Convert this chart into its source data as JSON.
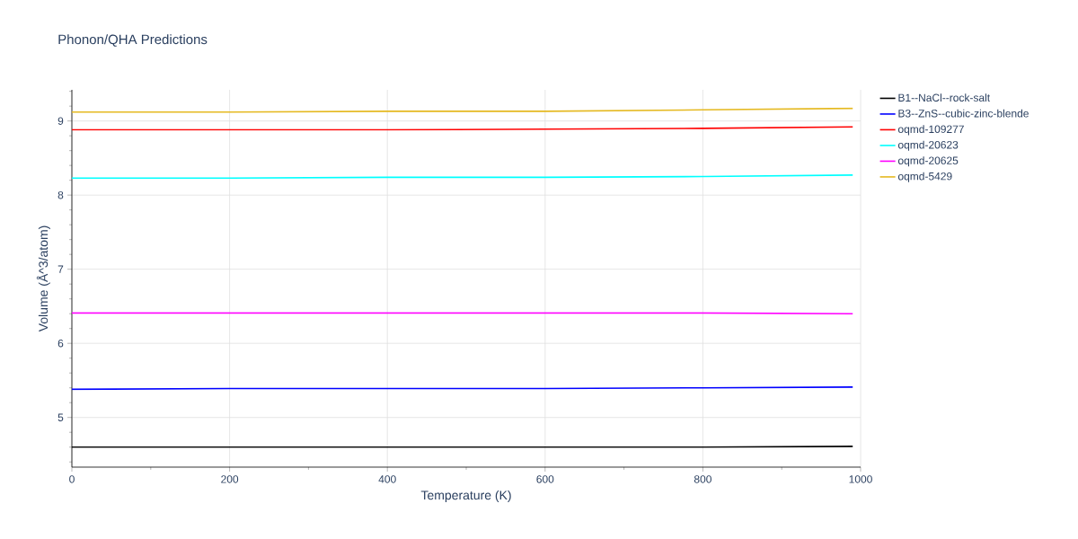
{
  "chart_data": {
    "type": "line",
    "title": "Phonon/QHA Predictions",
    "xlabel": "Temperature (K)",
    "ylabel": "Volume (Å^3/atom)",
    "x": [
      0,
      200,
      400,
      600,
      800,
      990
    ],
    "series": [
      {
        "name": "B1--NaCl--rock-salt",
        "color": "#000000",
        "values": [
          4.6,
          4.6,
          4.6,
          4.6,
          4.6,
          4.61
        ]
      },
      {
        "name": "B3--ZnS--cubic-zinc-blende",
        "color": "#0000ff",
        "values": [
          5.38,
          5.39,
          5.39,
          5.39,
          5.4,
          5.41
        ]
      },
      {
        "name": "oqmd-109277",
        "color": "#ff0000",
        "values": [
          8.88,
          8.88,
          8.88,
          8.89,
          8.9,
          8.92
        ]
      },
      {
        "name": "oqmd-20623",
        "color": "#00ffff",
        "values": [
          8.23,
          8.23,
          8.24,
          8.24,
          8.25,
          8.27
        ]
      },
      {
        "name": "oqmd-20625",
        "color": "#ff00ff",
        "values": [
          6.41,
          6.41,
          6.41,
          6.41,
          6.41,
          6.4
        ]
      },
      {
        "name": "oqmd-5429",
        "color": "#e5b921",
        "values": [
          9.12,
          9.12,
          9.13,
          9.13,
          9.15,
          9.17
        ]
      }
    ],
    "xlim": [
      0,
      1000
    ],
    "ylim": [
      4.33,
      9.42
    ],
    "xticks": [
      0,
      {
        "value": 100,
        "label": null
      },
      200,
      {
        "value": 300,
        "label": null
      },
      400,
      {
        "value": 500,
        "label": null
      },
      600,
      {
        "value": 700,
        "label": null
      },
      800,
      {
        "value": 900,
        "label": null
      },
      1000
    ],
    "yticks": [
      {
        "value": 4.4,
        "label": null
      },
      {
        "value": 4.6,
        "label": null
      },
      {
        "value": 4.8,
        "label": null
      },
      5,
      {
        "value": 5.2,
        "label": null
      },
      {
        "value": 5.4,
        "label": null
      },
      {
        "value": 5.6,
        "label": null
      },
      {
        "value": 5.8,
        "label": null
      },
      6,
      {
        "value": 6.2,
        "label": null
      },
      {
        "value": 6.4,
        "label": null
      },
      {
        "value": 6.6,
        "label": null
      },
      {
        "value": 6.8,
        "label": null
      },
      7,
      {
        "value": 7.2,
        "label": null
      },
      {
        "value": 7.4,
        "label": null
      },
      {
        "value": 7.6,
        "label": null
      },
      {
        "value": 7.8,
        "label": null
      },
      8,
      {
        "value": 8.2,
        "label": null
      },
      {
        "value": 8.4,
        "label": null
      },
      {
        "value": 8.6,
        "label": null
      },
      {
        "value": 8.8,
        "label": null
      },
      9,
      {
        "value": 9.2,
        "label": null
      },
      {
        "value": 9.4,
        "label": null
      }
    ],
    "grid": true,
    "legend": "right",
    "marker": "none",
    "line_style": "solid"
  }
}
